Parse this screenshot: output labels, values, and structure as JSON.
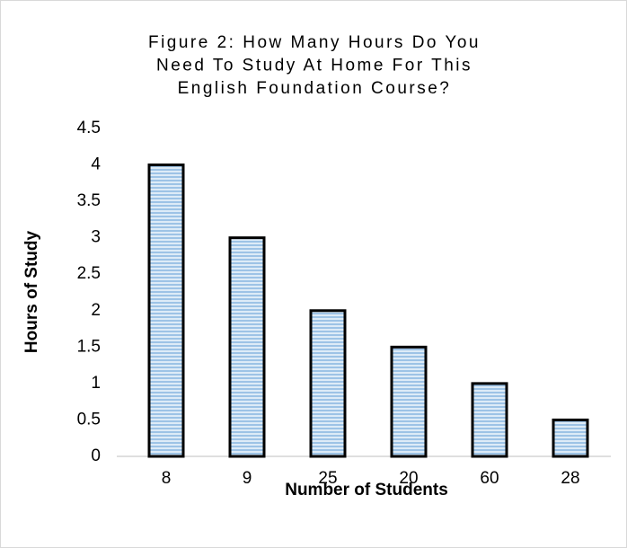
{
  "chart_data": {
    "type": "bar",
    "title": [
      "Figure 2: How Many Hours Do You",
      "Need To Study At Home For This",
      "English Foundation Course?"
    ],
    "x_label": "Number of Students",
    "y_label": "Hours of Study",
    "categories": [
      "8",
      "9",
      "25",
      "20",
      "60",
      "28"
    ],
    "values": [
      4,
      3,
      2,
      1.5,
      1,
      0.5
    ],
    "color": "#9dc3e6",
    "ylim": [
      0,
      4.5
    ],
    "yticks": [
      0,
      0.5,
      1,
      1.5,
      2,
      2.5,
      3,
      3.5,
      4,
      4.5
    ],
    "grid": false
  }
}
